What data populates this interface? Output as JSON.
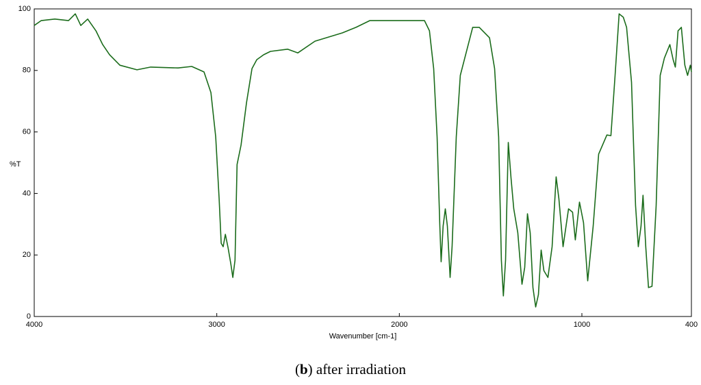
{
  "chart_data": {
    "type": "line",
    "ylabel": "%T",
    "xlabel": "Wavenumber [cm-1]",
    "caption": [
      "(",
      "b",
      ") after irradiation"
    ],
    "xlim": [
      4000,
      400
    ],
    "xticks": [
      4000,
      3000,
      2000,
      1000,
      400
    ],
    "ylim": [
      0,
      100
    ],
    "yticks": [
      0,
      20,
      40,
      60,
      80,
      100
    ],
    "series": [
      {
        "color": "#1a6b1a",
        "x": [
          4000,
          3962,
          3887,
          3812,
          3775,
          3745,
          3707,
          3662,
          3625,
          3587,
          3531,
          3437,
          3362,
          3212,
          3137,
          3070,
          3032,
          3006,
          2987,
          2976,
          2965,
          2953,
          2938,
          2923,
          2912,
          2900,
          2889,
          2867,
          2837,
          2807,
          2781,
          2743,
          2706,
          2612,
          2556,
          2462,
          2312,
          2237,
          2162,
          2012,
          1862,
          1835,
          1812,
          1793,
          1778,
          1771,
          1760,
          1748,
          1737,
          1722,
          1711,
          1688,
          1666,
          1598,
          1562,
          1506,
          1478,
          1456,
          1441,
          1430,
          1418,
          1403,
          1388,
          1373,
          1351,
          1328,
          1313,
          1298,
          1283,
          1268,
          1253,
          1238,
          1223,
          1208,
          1186,
          1163,
          1141,
          1126,
          1103,
          1073,
          1051,
          1036,
          1013,
          991,
          968,
          938,
          908,
          863,
          841,
          818,
          796,
          773,
          755,
          728,
          706,
          691,
          676,
          665,
          650,
          635,
          616,
          593,
          571,
          548,
          518,
          500,
          488,
          473,
          455,
          436,
          421,
          406,
          400
        ],
        "values": [
          94.6,
          96.2,
          96.7,
          96.2,
          98.4,
          94.6,
          96.7,
          92.9,
          88.4,
          85.1,
          81.7,
          80.2,
          81.1,
          80.8,
          81.3,
          79.5,
          72.8,
          58.4,
          38.3,
          23.8,
          22.7,
          26.7,
          22.3,
          17.1,
          12.7,
          18.3,
          49.4,
          55.7,
          69.5,
          80.6,
          83.5,
          85.1,
          86.2,
          86.9,
          85.7,
          89.5,
          92.2,
          94.0,
          96.2,
          96.2,
          96.2,
          92.9,
          80.6,
          58.4,
          29.4,
          17.8,
          29.4,
          35.0,
          29.4,
          12.7,
          22.7,
          58.4,
          78.4,
          94.0,
          94.0,
          90.6,
          80.6,
          58.4,
          18.3,
          6.7,
          18.3,
          56.6,
          45.0,
          35.0,
          27.2,
          10.5,
          16.0,
          33.4,
          27.2,
          9.4,
          3.1,
          7.1,
          21.6,
          14.9,
          12.7,
          22.7,
          45.4,
          38.3,
          22.7,
          35.0,
          33.9,
          24.9,
          37.2,
          30.5,
          11.6,
          29.4,
          52.8,
          59.0,
          58.8,
          78.4,
          98.4,
          97.3,
          94.0,
          76.2,
          36.1,
          22.7,
          29.4,
          39.4,
          22.7,
          9.4,
          9.8,
          36.1,
          78.4,
          84.0,
          88.4,
          83.5,
          81.1,
          92.9,
          94.0,
          81.7,
          78.4,
          81.7,
          79.5
        ]
      }
    ]
  }
}
